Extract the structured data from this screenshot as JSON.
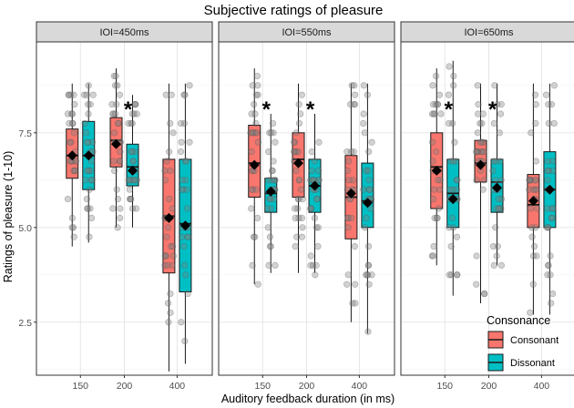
{
  "chart_data": {
    "type": "boxplot",
    "title": "Subjective ratings of pleasure",
    "xlabel": "Auditory feedback duration (in ms)",
    "ylabel": "Ratings of pleasure (1-10)",
    "ylim": [
      1.1,
      9.9
    ],
    "y_ticks": [
      2.5,
      5.0,
      7.5
    ],
    "y_tick_labels": [
      "2.5",
      "5.0",
      "7.5"
    ],
    "categories": [
      "150",
      "200",
      "400"
    ],
    "grid": true,
    "legend": {
      "title": "Consonance",
      "position": "bottom-right",
      "entries": [
        {
          "name": "Consonant",
          "color": "#F8766D"
        },
        {
          "name": "Dissonant",
          "color": "#00BFC4"
        }
      ]
    },
    "significance_marker": "*",
    "panels": [
      {
        "label": "IOI=450ms",
        "groups": [
          {
            "category": "150",
            "series": "Consonant",
            "q1": 6.3,
            "median": 6.9,
            "q3": 7.6,
            "whisker_low": 4.5,
            "whisker_high": 8.8,
            "mean": 6.9
          },
          {
            "category": "150",
            "series": "Dissonant",
            "q1": 6.0,
            "median": 6.9,
            "q3": 7.8,
            "whisker_low": 4.6,
            "whisker_high": 8.8,
            "mean": 6.9
          },
          {
            "category": "200",
            "series": "Consonant",
            "q1": 6.6,
            "median": 7.3,
            "q3": 7.9,
            "whisker_low": 5.0,
            "whisker_high": 9.2,
            "mean": 7.2
          },
          {
            "category": "200",
            "series": "Dissonant",
            "q1": 6.1,
            "median": 6.6,
            "q3": 7.2,
            "whisker_low": 5.0,
            "whisker_high": 8.5,
            "mean": 6.5
          },
          {
            "category": "400",
            "series": "Consonant",
            "q1": 3.8,
            "median": 5.3,
            "q3": 6.8,
            "whisker_low": 1.2,
            "whisker_high": 8.8,
            "mean": 5.25
          },
          {
            "category": "400",
            "series": "Dissonant",
            "q1": 3.3,
            "median": 5.1,
            "q3": 6.8,
            "whisker_low": 1.4,
            "whisker_high": 8.8,
            "mean": 5.05
          }
        ],
        "significant_categories": [
          "200"
        ]
      },
      {
        "label": "IOI=550ms",
        "groups": [
          {
            "category": "150",
            "series": "Consonant",
            "q1": 5.8,
            "median": 6.7,
            "q3": 7.7,
            "whisker_low": 3.5,
            "whisker_high": 9.2,
            "mean": 6.65
          },
          {
            "category": "150",
            "series": "Dissonant",
            "q1": 5.4,
            "median": 5.9,
            "q3": 6.3,
            "whisker_low": 3.8,
            "whisker_high": 8.0,
            "mean": 5.95
          },
          {
            "category": "200",
            "series": "Consonant",
            "q1": 5.8,
            "median": 6.8,
            "q3": 7.5,
            "whisker_low": 3.8,
            "whisker_high": 8.8,
            "mean": 6.7
          },
          {
            "category": "200",
            "series": "Dissonant",
            "q1": 5.4,
            "median": 6.1,
            "q3": 6.8,
            "whisker_low": 3.8,
            "whisker_high": 8.0,
            "mean": 6.1
          },
          {
            "category": "400",
            "series": "Consonant",
            "q1": 4.7,
            "median": 5.8,
            "q3": 6.9,
            "whisker_low": 2.5,
            "whisker_high": 8.8,
            "mean": 5.9
          },
          {
            "category": "400",
            "series": "Dissonant",
            "q1": 5.0,
            "median": 5.7,
            "q3": 6.7,
            "whisker_low": 2.2,
            "whisker_high": 8.8,
            "mean": 5.65
          }
        ],
        "significant_categories": [
          "150",
          "200"
        ]
      },
      {
        "label": "IOI=650ms",
        "groups": [
          {
            "category": "150",
            "series": "Consonant",
            "q1": 5.5,
            "median": 6.6,
            "q3": 7.5,
            "whisker_low": 4.0,
            "whisker_high": 9.2,
            "mean": 6.5
          },
          {
            "category": "150",
            "series": "Dissonant",
            "q1": 5.0,
            "median": 5.9,
            "q3": 6.8,
            "whisker_low": 3.2,
            "whisker_high": 9.4,
            "mean": 5.75
          },
          {
            "category": "200",
            "series": "Consonant",
            "q1": 6.2,
            "median": 6.7,
            "q3": 7.3,
            "whisker_low": 3.0,
            "whisker_high": 8.8,
            "mean": 6.65
          },
          {
            "category": "200",
            "series": "Dissonant",
            "q1": 5.4,
            "median": 6.2,
            "q3": 6.8,
            "whisker_low": 4.0,
            "whisker_high": 8.8,
            "mean": 6.05
          },
          {
            "category": "400",
            "series": "Consonant",
            "q1": 5.0,
            "median": 5.6,
            "q3": 6.4,
            "whisker_low": 2.7,
            "whisker_high": 8.8,
            "mean": 5.7
          },
          {
            "category": "400",
            "series": "Dissonant",
            "q1": 5.0,
            "median": 6.0,
            "q3": 7.0,
            "whisker_low": 2.7,
            "whisker_high": 8.8,
            "mean": 6.0
          }
        ],
        "significant_categories": [
          "150",
          "200"
        ]
      }
    ]
  }
}
